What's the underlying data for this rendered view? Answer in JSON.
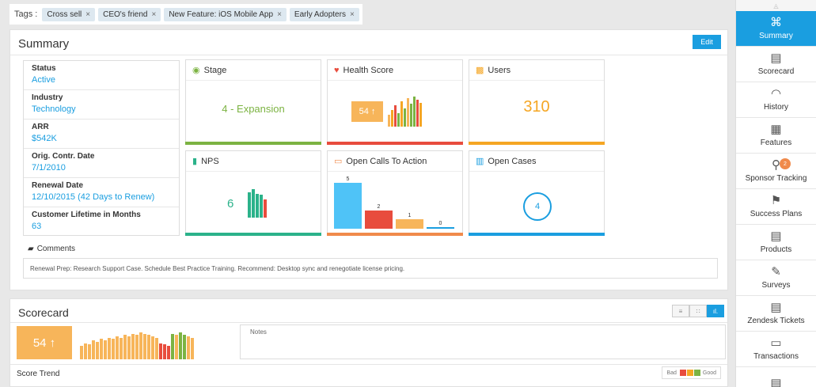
{
  "tags": {
    "label": "Tags :",
    "items": [
      "Cross sell",
      "CEO's friend",
      "New Feature: iOS Mobile App",
      "Early Adopters"
    ],
    "remove_glyph": "×"
  },
  "summary": {
    "title": "Summary",
    "edit_label": "Edit",
    "info": [
      {
        "label": "Status",
        "value": "Active"
      },
      {
        "label": "Industry",
        "value": "Technology"
      },
      {
        "label": "ARR",
        "value": "$542K"
      },
      {
        "label": "Orig. Contr. Date",
        "value": "7/1/2010"
      },
      {
        "label": "Renewal Date",
        "value": "12/10/2015 (42 Days to Renew)"
      },
      {
        "label": "Customer Lifetime in Months",
        "value": "63"
      }
    ],
    "cards": {
      "stage": {
        "title": "Stage",
        "value": "4 - Expansion",
        "icon": "map-pin-icon"
      },
      "health": {
        "title": "Health Score",
        "value": "54 ↑",
        "icon": "heart-icon",
        "trend": [
          0.4,
          0.55,
          0.7,
          0.45,
          0.85,
          0.6,
          0.95,
          0.75,
          1.0,
          0.9,
          0.8
        ]
      },
      "users": {
        "title": "Users",
        "value": "310",
        "icon": "grid-icon"
      },
      "nps": {
        "title": "NPS",
        "value": "6",
        "icon": "bar-chart-icon",
        "trend": [
          0.85,
          0.95,
          0.8,
          0.75,
          0.6
        ]
      },
      "cta": {
        "title": "Open Calls To Action",
        "icon": "cta-icon",
        "values": [
          5,
          2,
          1,
          0
        ],
        "labels": [
          "5",
          "2",
          "1",
          "0"
        ]
      },
      "cases": {
        "title": "Open Cases",
        "value": "4",
        "icon": "cases-icon"
      }
    },
    "comments_label": "Comments",
    "comments_text": "Renewal Prep: Research Support Case. Schedule Best Practice Training. Recommend: Desktop sync and renegotiate license pricing."
  },
  "scorecard": {
    "title": "Scorecard",
    "score": "54 ↑",
    "notes_label": "Notes",
    "trend_label": "Score Trend",
    "legend_bad": "Bad",
    "legend_good": "Good",
    "toggle_icons": [
      "list-view-icon",
      "grid-view-icon",
      "chart-view-icon"
    ],
    "trend": [
      0.5,
      0.6,
      0.55,
      0.7,
      0.65,
      0.75,
      0.7,
      0.8,
      0.75,
      0.85,
      0.8,
      0.9,
      0.85,
      0.95,
      0.9,
      1.0,
      0.95,
      0.9,
      0.85,
      0.8,
      0.6,
      0.55,
      0.5,
      0.95,
      0.9,
      1.0,
      0.92,
      0.85,
      0.8
    ]
  },
  "sidebar": {
    "items": [
      {
        "label": "Summary",
        "icon": "binoculars-icon",
        "glyph": "⌘",
        "active": true
      },
      {
        "label": "Scorecard",
        "icon": "scorecard-icon",
        "glyph": "▤"
      },
      {
        "label": "History",
        "icon": "gauge-icon",
        "glyph": "◠"
      },
      {
        "label": "Features",
        "icon": "puzzle-icon",
        "glyph": "▦"
      },
      {
        "label": "Sponsor Tracking",
        "icon": "sponsor-icon",
        "glyph": "⚲",
        "badge": "2"
      },
      {
        "label": "Success Plans",
        "icon": "flag-icon",
        "glyph": "⚑"
      },
      {
        "label": "Products",
        "icon": "products-icon",
        "glyph": "▤"
      },
      {
        "label": "Surveys",
        "icon": "survey-icon",
        "glyph": "✎"
      },
      {
        "label": "Zendesk Tickets",
        "icon": "ticket-icon",
        "glyph": "▤"
      },
      {
        "label": "Transactions",
        "icon": "card-icon",
        "glyph": "▭"
      },
      {
        "label": "",
        "icon": "more-icon",
        "glyph": "▤"
      }
    ]
  },
  "colors": {
    "accent": "#1a9ee0",
    "green": "#7cb342",
    "teal": "#2bb28a",
    "red": "#e84c3d",
    "orange": "#f5a623",
    "light_orange": "#f7b55a",
    "light_blue": "#4fc3f7"
  }
}
